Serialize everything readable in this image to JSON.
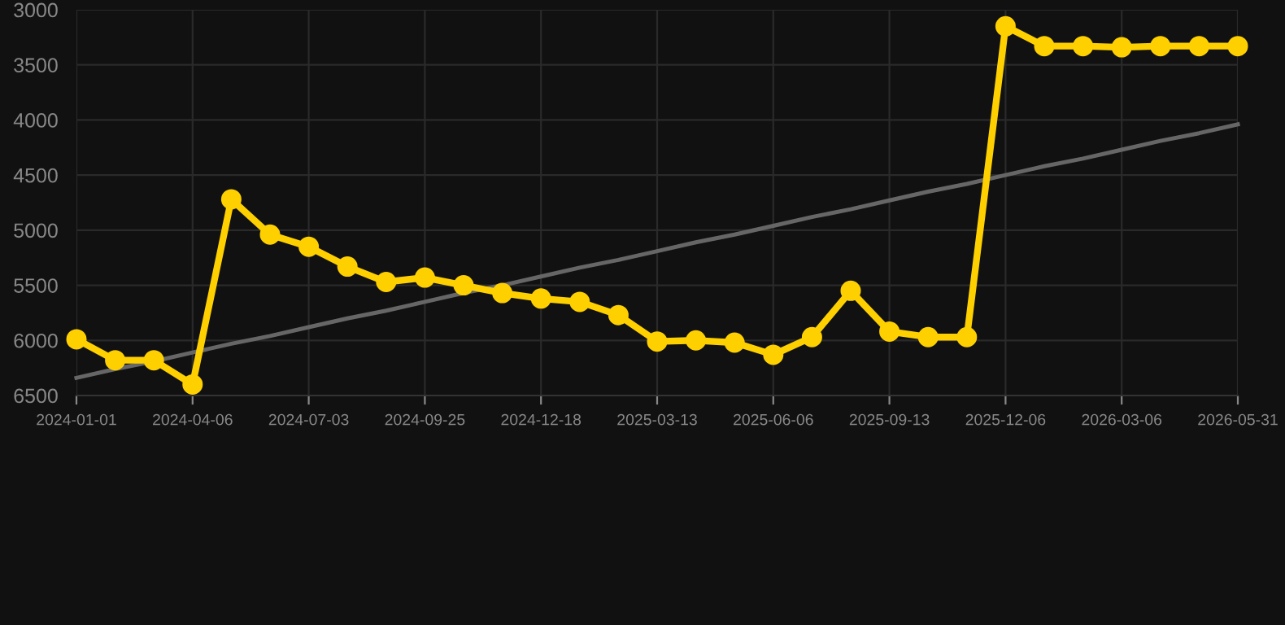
{
  "chart_data": {
    "type": "line",
    "categories": [
      "2024-01-01",
      null,
      null,
      "2024-04-06",
      null,
      null,
      "2024-07-03",
      null,
      null,
      "2024-09-25",
      null,
      null,
      "2024-12-18",
      null,
      null,
      "2025-03-13",
      null,
      null,
      "2025-06-06",
      null,
      null,
      "2025-09-13",
      null,
      null,
      "2025-12-06",
      null,
      null,
      "2026-03-06",
      null,
      null,
      "2026-05-31"
    ],
    "series": [
      {
        "color": "#ffd000",
        "marker": "circle",
        "values": [
          5990,
          6180,
          6180,
          6400,
          4720,
          5040,
          5150,
          5330,
          5470,
          5430,
          5500,
          5570,
          5620,
          5650,
          5770,
          6010,
          6000,
          6020,
          6130,
          5970,
          5550,
          5920,
          5970,
          5970,
          3150,
          3330,
          3330,
          3340,
          3330,
          3330,
          3330
        ]
      },
      {
        "type": "line",
        "color": "#666666",
        "marker": "none",
        "values": [
          6340,
          6260,
          6190,
          6110,
          6030,
          5960,
          5880,
          5800,
          5730,
          5650,
          5570,
          5500,
          5420,
          5340,
          5270,
          5190,
          5110,
          5040,
          4960,
          4880,
          4810,
          4730,
          4650,
          4580,
          4500,
          4420,
          4350,
          4270,
          4190,
          4120,
          4040
        ]
      }
    ],
    "ylim": [
      6500,
      3000
    ],
    "yticks": [
      3000,
      3500,
      4000,
      4500,
      5000,
      5500,
      6000,
      6500
    ],
    "grid": true
  }
}
